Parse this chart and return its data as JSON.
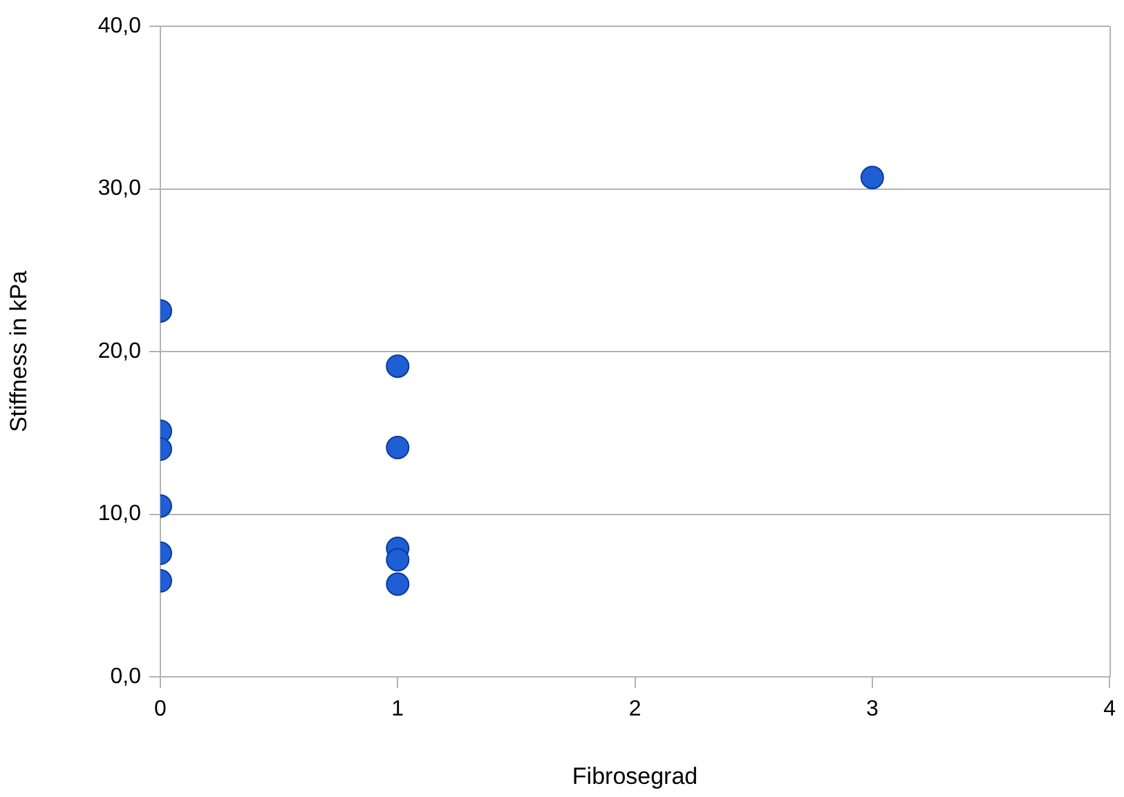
{
  "chart_data": {
    "type": "scatter",
    "xlabel": "Fibrosegrad",
    "ylabel": "Stiffness in kPa",
    "x": [
      0,
      0,
      0,
      0,
      0,
      0,
      1,
      1,
      1,
      1,
      1,
      3
    ],
    "values": [
      22.5,
      15.1,
      14.0,
      10.5,
      7.6,
      5.9,
      19.1,
      14.1,
      7.9,
      7.2,
      5.7,
      30.7
    ],
    "color": "#1f5fd6",
    "marker": "circle",
    "xlim": [
      0,
      4
    ],
    "xticks": [
      0,
      1,
      2,
      3,
      4
    ],
    "ylim": [
      0,
      40
    ],
    "yticks": [
      {
        "value": 0,
        "label": "0,0"
      },
      {
        "value": 10,
        "label": "10,0"
      },
      {
        "value": 20,
        "label": "20,0"
      },
      {
        "value": 30,
        "label": "30,0"
      },
      {
        "value": 40,
        "label": "40,0"
      }
    ],
    "grid": "y",
    "legend": false
  }
}
